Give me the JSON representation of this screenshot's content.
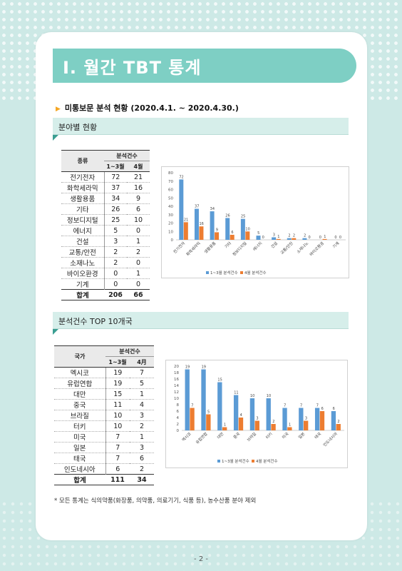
{
  "title": "Ⅰ. 월간 TBT 통계",
  "subheading": {
    "text": "미통보문 분석 현황",
    "period": "(2020.4.1. ~ 2020.4.30.)"
  },
  "sections": {
    "field": "분야별 현황",
    "country": "분석건수 TOP 10개국"
  },
  "field_table": {
    "col_name": "종류",
    "col_group": "분석건수",
    "col_a": "1~3월",
    "col_b": "4월",
    "rows": [
      {
        "name": "전기전자",
        "a": "72",
        "b": "21"
      },
      {
        "name": "화학세라믹",
        "a": "37",
        "b": "16"
      },
      {
        "name": "생활용품",
        "a": "34",
        "b": "9"
      },
      {
        "name": "기타",
        "a": "26",
        "b": "6"
      },
      {
        "name": "정보디지털",
        "a": "25",
        "b": "10"
      },
      {
        "name": "에너지",
        "a": "5",
        "b": "0"
      },
      {
        "name": "건설",
        "a": "3",
        "b": "1"
      },
      {
        "name": "교통/안전",
        "a": "2",
        "b": "2"
      },
      {
        "name": "소재나노",
        "a": "2",
        "b": "0"
      },
      {
        "name": "바이오환경",
        "a": "0",
        "b": "1"
      },
      {
        "name": "기계",
        "a": "0",
        "b": "0"
      }
    ],
    "total": {
      "name": "합계",
      "a": "206",
      "b": "66"
    }
  },
  "country_table": {
    "col_name": "국가",
    "col_group": "분석건수",
    "col_a": "1~3월",
    "col_b": "4月",
    "rows": [
      {
        "name": "멕시코",
        "a": "19",
        "b": "7"
      },
      {
        "name": "유럽연합",
        "a": "19",
        "b": "5"
      },
      {
        "name": "대만",
        "a": "15",
        "b": "1"
      },
      {
        "name": "중국",
        "a": "11",
        "b": "4"
      },
      {
        "name": "브라질",
        "a": "10",
        "b": "3"
      },
      {
        "name": "터키",
        "a": "10",
        "b": "2"
      },
      {
        "name": "미국",
        "a": "7",
        "b": "1"
      },
      {
        "name": "일본",
        "a": "7",
        "b": "3"
      },
      {
        "name": "태국",
        "a": "7",
        "b": "6"
      },
      {
        "name": "인도네시아",
        "a": "6",
        "b": "2"
      }
    ],
    "total": {
      "name": "합계",
      "a": "111",
      "b": "34"
    }
  },
  "chart_data": [
    {
      "type": "bar",
      "categories": [
        "전기전자",
        "화학세라믹",
        "생활용품",
        "기타",
        "정보디지털",
        "에너지",
        "건설",
        "교통/안전",
        "소재나노",
        "바이오환경",
        "기계"
      ],
      "series": [
        {
          "name": "1~3월 분석건수",
          "values": [
            72,
            37,
            34,
            26,
            25,
            5,
            3,
            2,
            2,
            0,
            0
          ],
          "color": "#5b9bd5"
        },
        {
          "name": "4월 분석건수",
          "values": [
            21,
            16,
            9,
            6,
            10,
            0,
            1,
            2,
            0,
            1,
            0
          ],
          "color": "#ed7d31"
        }
      ],
      "ylim": [
        0,
        80
      ],
      "yticks": [
        0,
        10,
        20,
        30,
        40,
        50,
        60,
        70,
        80
      ],
      "grid": false,
      "legend": "bottom"
    },
    {
      "type": "bar",
      "categories": [
        "멕시코",
        "유럽연합",
        "대만",
        "중국",
        "브라질",
        "터키",
        "미국",
        "일본",
        "태국",
        "인도네시아"
      ],
      "series": [
        {
          "name": "1~3월 분석건수",
          "values": [
            19,
            19,
            15,
            11,
            10,
            10,
            7,
            7,
            7,
            6
          ],
          "color": "#5b9bd5"
        },
        {
          "name": "4월 분석건수",
          "values": [
            7,
            5,
            1,
            4,
            3,
            2,
            1,
            3,
            6,
            2
          ],
          "color": "#ed7d31"
        }
      ],
      "ylim": [
        0,
        20
      ],
      "yticks": [
        0,
        2,
        4,
        6,
        8,
        10,
        12,
        14,
        16,
        18,
        20
      ],
      "grid": false,
      "legend": "bottom"
    }
  ],
  "note": "* 모든 통계는 식의약품(화장품, 의약품, 의료기기, 식품 등), 농수산품 분야 제외",
  "page_number": "- 2 -",
  "colors": {
    "accent": "#7ecfc4",
    "background": "#cde9e6",
    "series_a": "#5b9bd5",
    "series_b": "#ed7d31"
  }
}
